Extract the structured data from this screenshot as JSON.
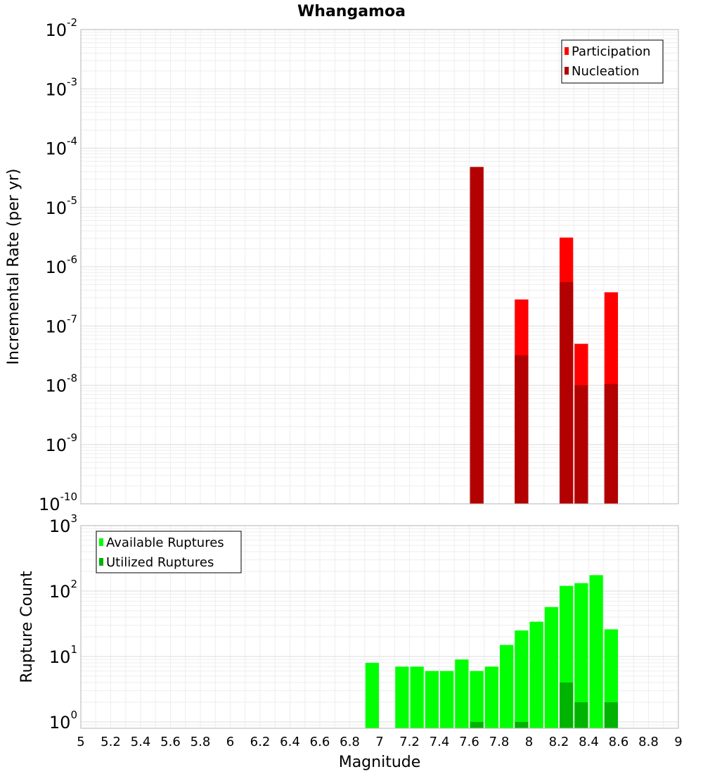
{
  "title": "Whangamoa",
  "xlabel": "Magnitude",
  "chart_data": [
    {
      "type": "bar",
      "panel": "top",
      "ylabel": "Incremental Rate (per yr)",
      "yscale": "log",
      "ylim": [
        1e-10,
        0.01
      ],
      "y_ticks": [
        {
          "base": "10",
          "exp": "-2"
        },
        {
          "base": "10",
          "exp": "-3"
        },
        {
          "base": "10",
          "exp": "-4"
        },
        {
          "base": "10",
          "exp": "-5"
        },
        {
          "base": "10",
          "exp": "-6"
        },
        {
          "base": "10",
          "exp": "-7"
        },
        {
          "base": "10",
          "exp": "-8"
        },
        {
          "base": "10",
          "exp": "-9"
        },
        {
          "base": "10",
          "exp": "-10"
        }
      ],
      "xlim": [
        5,
        9
      ],
      "grid": true,
      "legend_position": "top-right",
      "series": [
        {
          "name": "Participation",
          "color": "#ff0000",
          "x": [
            7.65,
            7.95,
            8.25,
            8.35,
            8.55
          ],
          "values": [
            4.8e-05,
            2.8e-07,
            3.1e-06,
            5e-08,
            3.7e-07
          ]
        },
        {
          "name": "Nucleation",
          "color": "#b30000",
          "x": [
            7.65,
            7.95,
            8.25,
            8.35,
            8.55
          ],
          "values": [
            4.8e-05,
            3.2e-08,
            5.5e-07,
            1e-08,
            1.05e-08
          ]
        }
      ]
    },
    {
      "type": "bar",
      "panel": "bottom",
      "ylabel": "Rupture Count",
      "yscale": "log",
      "ylim": [
        0.8,
        1000
      ],
      "y_ticks": [
        {
          "base": "10",
          "exp": "3"
        },
        {
          "base": "10",
          "exp": "2"
        },
        {
          "base": "10",
          "exp": "1"
        },
        {
          "base": "10",
          "exp": "0"
        }
      ],
      "xlim": [
        5,
        9
      ],
      "x_ticks": [
        "5",
        "5.2",
        "5.4",
        "5.6",
        "5.8",
        "6",
        "6.2",
        "6.4",
        "6.6",
        "6.8",
        "7",
        "7.2",
        "7.4",
        "7.6",
        "7.8",
        "8",
        "8.2",
        "8.4",
        "8.6",
        "8.8",
        "9"
      ],
      "grid": true,
      "legend_position": "top-left",
      "series": [
        {
          "name": "Available Ruptures",
          "color": "#00ff00",
          "x": [
            6.95,
            7.15,
            7.25,
            7.35,
            7.45,
            7.55,
            7.65,
            7.75,
            7.85,
            7.95,
            8.05,
            8.15,
            8.25,
            8.35,
            8.45,
            8.55
          ],
          "values": [
            8,
            7,
            7,
            6,
            6,
            9,
            6,
            7,
            15,
            25,
            34,
            57,
            120,
            132,
            175,
            26
          ]
        },
        {
          "name": "Utilized Ruptures",
          "color": "#00b300",
          "x": [
            7.65,
            7.95,
            8.25,
            8.35,
            8.55
          ],
          "values": [
            1,
            1,
            4,
            2,
            2
          ]
        }
      ]
    }
  ]
}
